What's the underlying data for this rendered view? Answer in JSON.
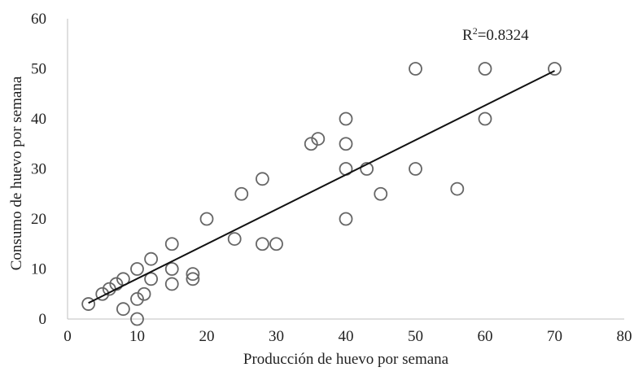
{
  "chart_data": {
    "type": "scatter",
    "title": "",
    "xlabel": "Producción de huevo por semana",
    "ylabel": "Consumo de huevo por semana",
    "xlim": [
      0,
      80
    ],
    "ylim": [
      0,
      60
    ],
    "xticks": [
      "0",
      "10",
      "20",
      "30",
      "40",
      "50",
      "60",
      "70",
      "80"
    ],
    "yticks": [
      "0",
      "10",
      "20",
      "30",
      "40",
      "50",
      "60"
    ],
    "grid": false,
    "legend": "none",
    "marker": "open-circle",
    "marker_color": "#666666",
    "line_color": "#111111",
    "points": [
      [
        3,
        3
      ],
      [
        5,
        5
      ],
      [
        6,
        6
      ],
      [
        7,
        7
      ],
      [
        8,
        8
      ],
      [
        8,
        2
      ],
      [
        10,
        10
      ],
      [
        10,
        4
      ],
      [
        10,
        0
      ],
      [
        11,
        5
      ],
      [
        12,
        12
      ],
      [
        12,
        8
      ],
      [
        15,
        15
      ],
      [
        15,
        10
      ],
      [
        15,
        7
      ],
      [
        18,
        9
      ],
      [
        18,
        8
      ],
      [
        20,
        20
      ],
      [
        24,
        16
      ],
      [
        25,
        25
      ],
      [
        28,
        28
      ],
      [
        28,
        15
      ],
      [
        30,
        15
      ],
      [
        35,
        35
      ],
      [
        36,
        36
      ],
      [
        40,
        40
      ],
      [
        40,
        35
      ],
      [
        40,
        30
      ],
      [
        40,
        20
      ],
      [
        43,
        30
      ],
      [
        45,
        25
      ],
      [
        50,
        50
      ],
      [
        50,
        30
      ],
      [
        56,
        26
      ],
      [
        60,
        50
      ],
      [
        60,
        40
      ],
      [
        70,
        50
      ]
    ],
    "trendline": {
      "x": [
        3,
        70
      ],
      "y": [
        3.2,
        49.6
      ]
    },
    "annotation": {
      "label": "R",
      "sup": "2",
      "value": "=0.8324"
    }
  }
}
